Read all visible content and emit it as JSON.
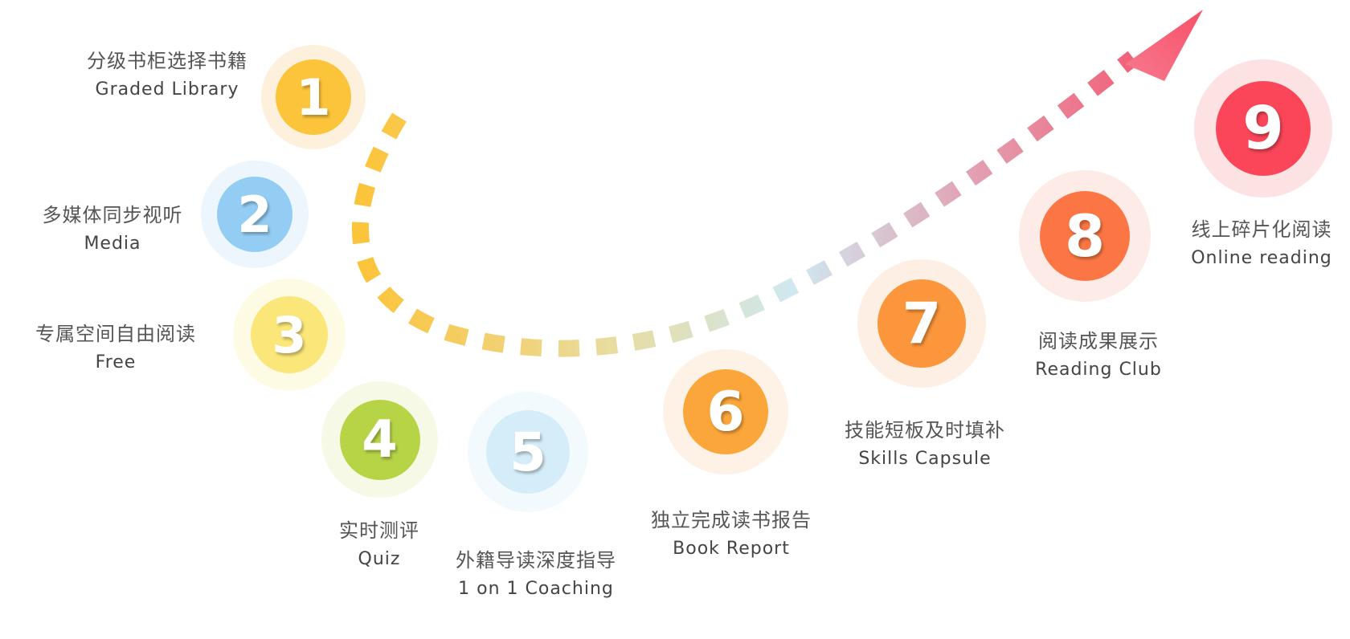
{
  "steps": [
    {
      "number": "1",
      "zh": "分级书柜选择书籍",
      "en": "Graded Library",
      "color": "#fcc43a",
      "halo": "#fdf1dd"
    },
    {
      "number": "2",
      "zh": "多媒体同步视听",
      "en": "Media",
      "color": "#94cdf4",
      "halo": "#eef6fd"
    },
    {
      "number": "3",
      "zh": "专属空间自由阅读",
      "en": "Free",
      "color": "#fbe67a",
      "halo": "#fefbe5"
    },
    {
      "number": "4",
      "zh": "实时测评",
      "en": "Quiz",
      "color": "#b7d447",
      "halo": "#f5f9e5"
    },
    {
      "number": "5",
      "zh": "外籍导读深度指导",
      "en": "1 on 1 Coaching",
      "color": "#d5edf8",
      "halo": "#f3fafd"
    },
    {
      "number": "6",
      "zh": "独立完成读书报告",
      "en": "Book Report",
      "color": "#fba63a",
      "halo": "#fef2e6"
    },
    {
      "number": "7",
      "zh": "技能短板及时填补",
      "en": "Skills Capsule",
      "color": "#fb963c",
      "halo": "#feefe4"
    },
    {
      "number": "8",
      "zh": "阅读成果展示",
      "en": "Reading Club",
      "color": "#fb7644",
      "halo": "#fdebe7"
    },
    {
      "number": "9",
      "zh": "线上碎片化阅读",
      "en": "Online reading",
      "color": "#fa4658",
      "halo": "#fde2e4"
    }
  ],
  "path_colors": {
    "start": "#fcc43a",
    "middle": "#cfe8f0",
    "end": "#f45a74",
    "arrow": "#f75069"
  }
}
